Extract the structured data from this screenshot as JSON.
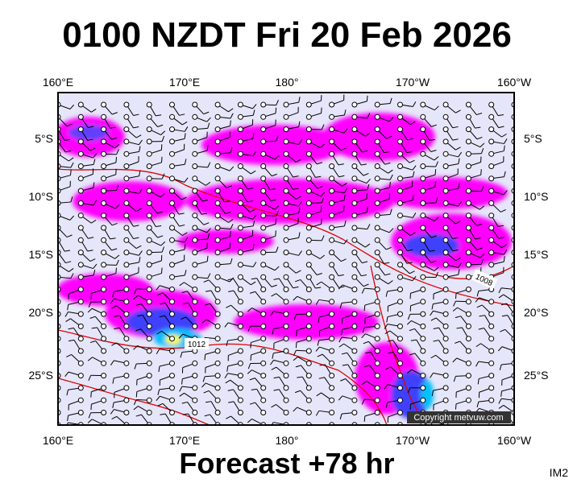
{
  "header": {
    "title": "0100 NZDT Fri 20 Feb 2026"
  },
  "map": {
    "top_labels": [
      "160°E",
      "170°E",
      "180°",
      "170°W",
      "160°W"
    ],
    "bottom_labels": [
      "160°E",
      "170°E",
      "180°",
      "170°W",
      "160°W"
    ],
    "left_labels": [
      "5°S",
      "10°S",
      "15°S",
      "20°S",
      "25°S"
    ],
    "right_labels": [
      "5°S",
      "10°S",
      "15°S",
      "20°S",
      "25°S"
    ],
    "contour_labels": [
      "1012",
      "1008"
    ],
    "copyright": "Copyright metvuw.com"
  },
  "footer": {
    "forecast": "Forecast +78 hr",
    "code": "IM2"
  }
}
